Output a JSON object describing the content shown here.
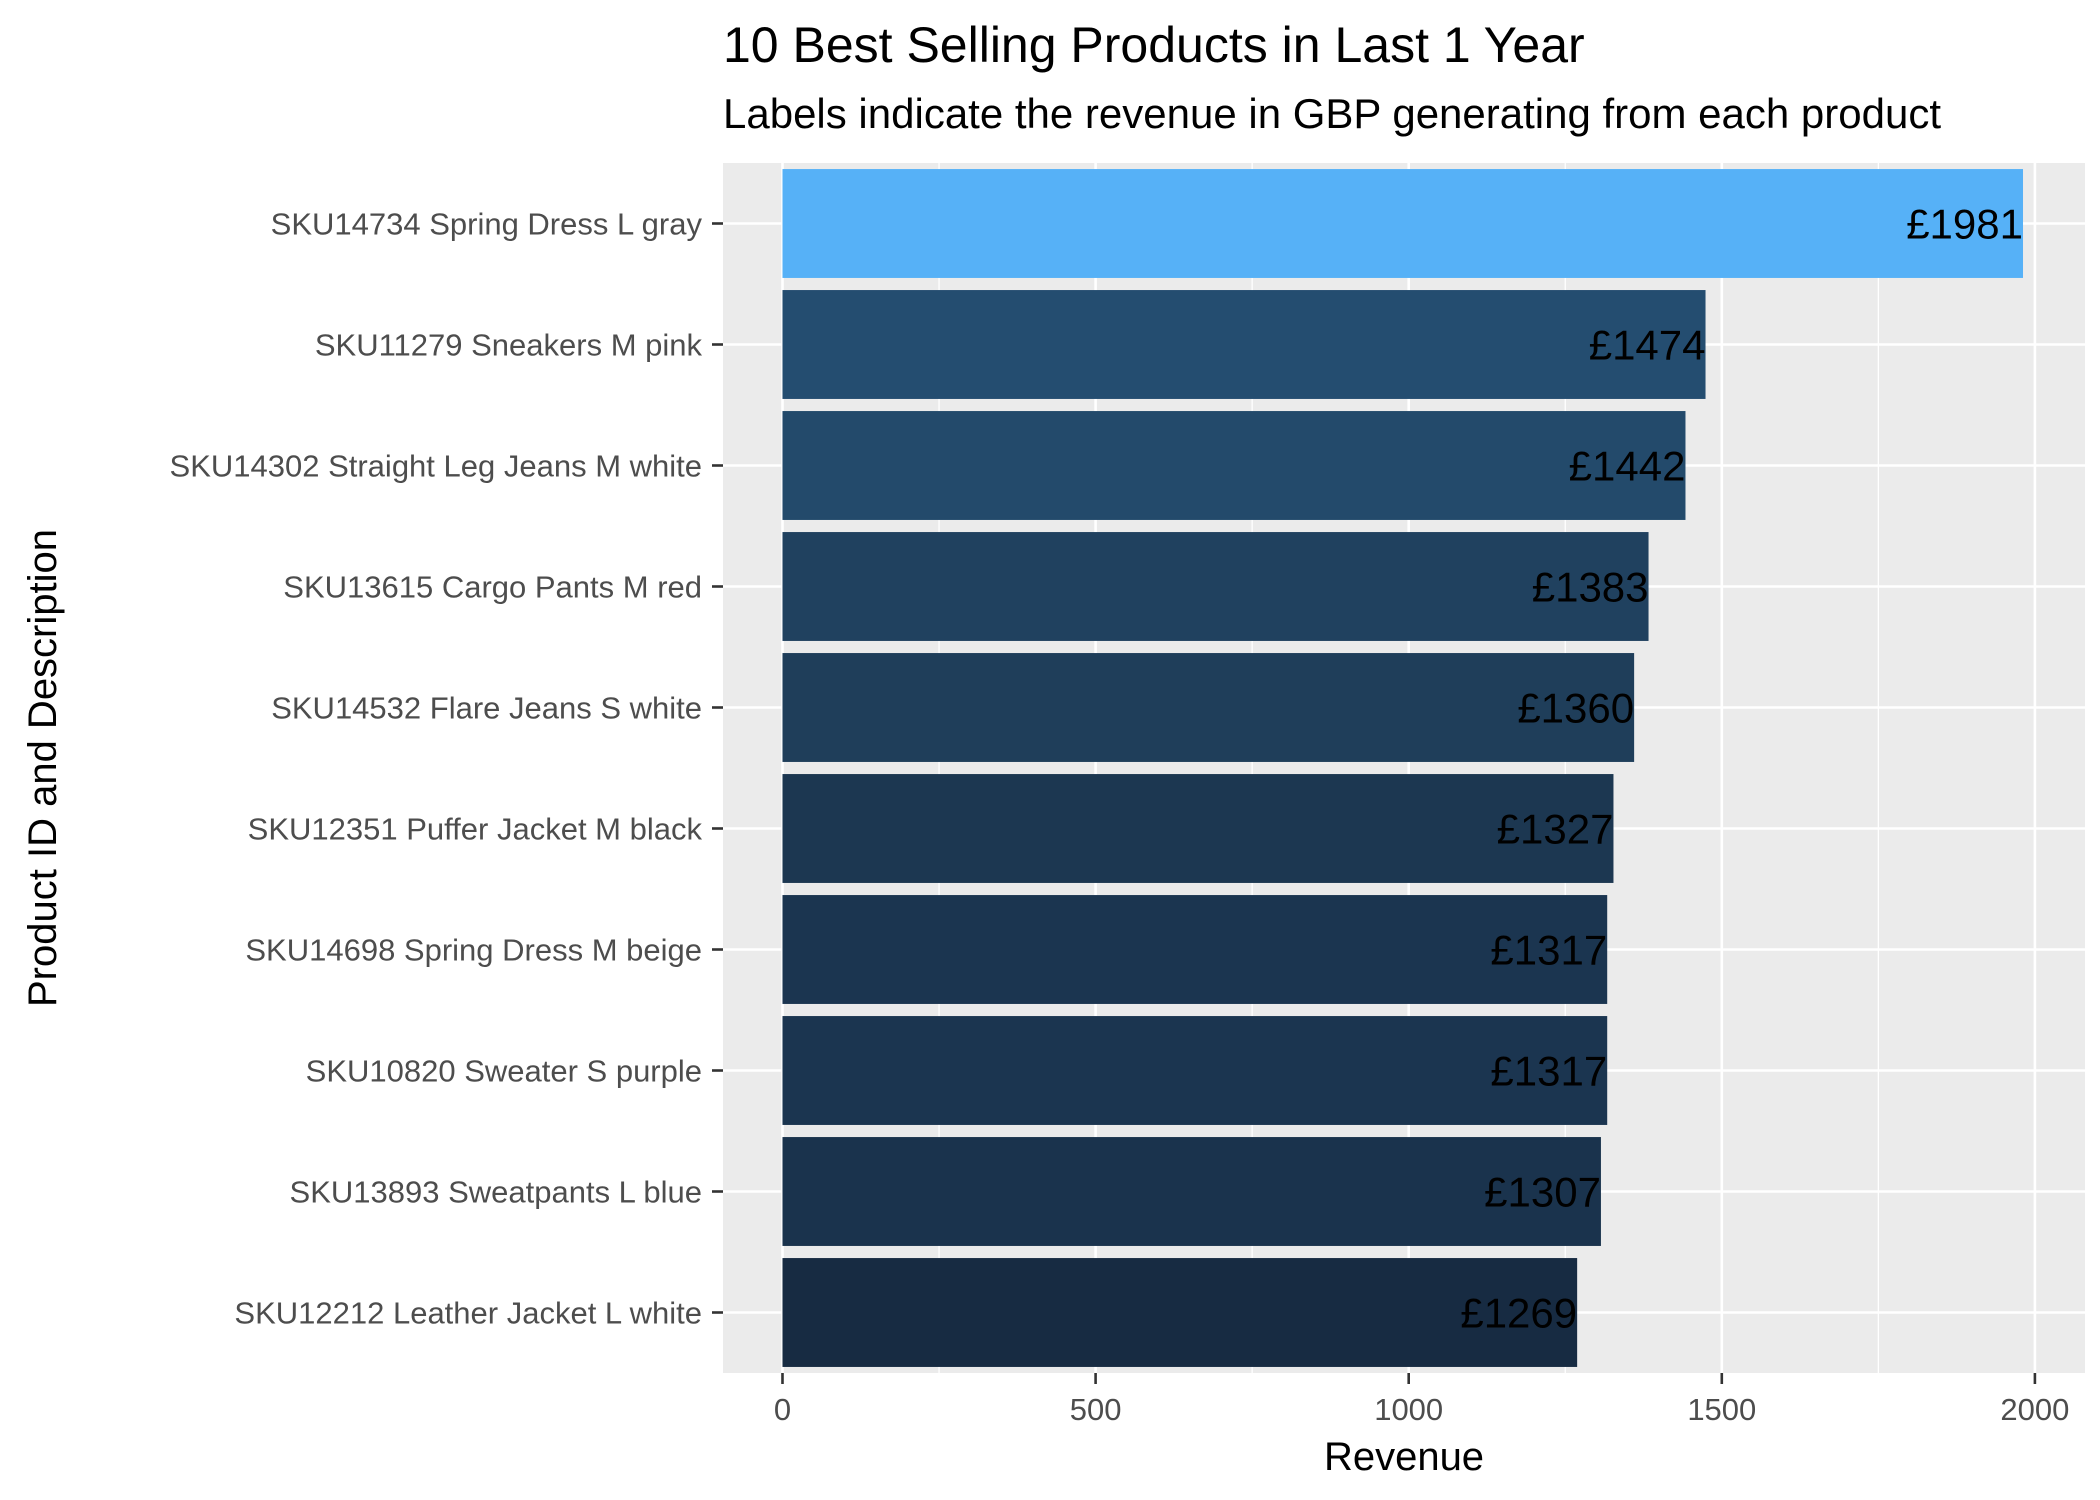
{
  "chart_data": {
    "type": "bar",
    "orientation": "horizontal",
    "title": "10 Best Selling Products in Last 1 Year",
    "subtitle": "Labels indicate the revenue in GBP generating from each product",
    "xlabel": "Revenue",
    "ylabel": "Product ID and Description",
    "xlim": [
      -95,
      2080
    ],
    "x_ticks": [
      0,
      500,
      1000,
      1500,
      2000
    ],
    "x_tick_labels": [
      "0",
      "500",
      "1000",
      "1500",
      "2000"
    ],
    "grid": true,
    "panel_background": "#EBEBEB",
    "categories": [
      "SKU14734 Spring Dress L gray",
      "SKU11279 Sneakers M pink",
      "SKU14302 Straight Leg Jeans M white",
      "SKU13615 Cargo Pants M red",
      "SKU14532 Flare Jeans S white",
      "SKU12351 Puffer Jacket M black",
      "SKU14698 Spring Dress M beige",
      "SKU10820 Sweater S purple",
      "SKU13893 Sweatpants L blue",
      "SKU12212 Leather Jacket L white"
    ],
    "values": [
      1981,
      1474,
      1442,
      1383,
      1360,
      1327,
      1317,
      1317,
      1307,
      1269
    ],
    "data_labels": [
      "£1981",
      "£1474",
      "£1442",
      "£1383",
      "£1360",
      "£1327",
      "£1317",
      "£1317",
      "£1307",
      "£1269"
    ],
    "colors": [
      "#56B1F7",
      "#244D70",
      "#234A6B",
      "#20415F",
      "#1F3E5A",
      "#1C3751",
      "#1B3550",
      "#1B3550",
      "#1A334D",
      "#172B42"
    ]
  }
}
